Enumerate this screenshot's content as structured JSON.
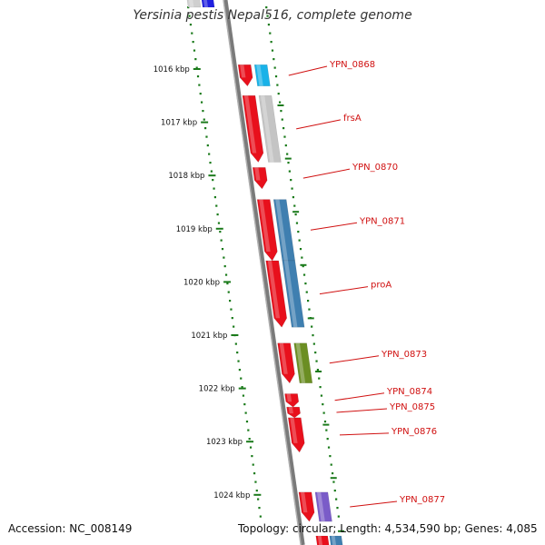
{
  "title": "Yersinia pestis Nepal516, complete genome",
  "footer": {
    "accession": "Accession: NC_008149",
    "summary": "Topology: circular; Length: 4,534,590 bp; Genes: 4,085"
  },
  "ticks": [
    "1016 kbp",
    "1017 kbp",
    "1018 kbp",
    "1019 kbp",
    "1020 kbp",
    "1021 kbp",
    "1022 kbp",
    "1023 kbp",
    "1024 kbp"
  ],
  "genes": [
    {
      "name": "YPN_0868",
      "start_kbp": 1015.92,
      "end_kbp": 1016.32,
      "color": "#19b2e8"
    },
    {
      "name": "frsA",
      "start_kbp": 1016.5,
      "end_kbp": 1017.75,
      "color": "#c4c4c4"
    },
    {
      "name": "YPN_0870",
      "start_kbp": 1017.85,
      "end_kbp": 1018.25,
      "color": null
    },
    {
      "name": "YPN_0871",
      "start_kbp": 1018.45,
      "end_kbp": 1019.6,
      "color": "#3f7fb0"
    },
    {
      "name": "proA",
      "start_kbp": 1019.6,
      "end_kbp": 1020.85,
      "color": "#3f7fb0"
    },
    {
      "name": "YPN_0873",
      "start_kbp": 1021.15,
      "end_kbp": 1021.9,
      "color": "#6b8e23"
    },
    {
      "name": "YPN_0874",
      "start_kbp": 1022.1,
      "end_kbp": 1022.35,
      "color": null
    },
    {
      "name": "YPN_0875",
      "start_kbp": 1022.35,
      "end_kbp": 1022.55,
      "color": null
    },
    {
      "name": "YPN_0876",
      "start_kbp": 1022.55,
      "end_kbp": 1023.2,
      "color": null
    },
    {
      "name": "YPN_0877",
      "start_kbp": 1023.95,
      "end_kbp": 1024.5,
      "color": "#7a5cc8"
    }
  ],
  "colors": {
    "forward_strand": "#e8101c",
    "gene_label": "#d01010",
    "tick": "#1a7a1a",
    "backbone": "#7a7a7a"
  }
}
